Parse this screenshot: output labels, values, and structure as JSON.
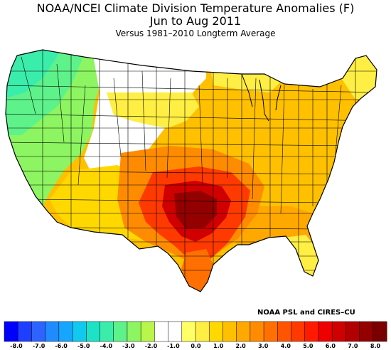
{
  "title": "NOAA/NCEI Climate Division Temperature Anomalies (F)",
  "subtitle": "Jun to Aug 2011",
  "note": "Versus 1981–2010 Longterm Average",
  "credit": "NOAA PSL and CIRES–CU",
  "legend": {
    "ticks": [
      "-8.0",
      "-7.0",
      "-6.0",
      "-5.0",
      "-4.0",
      "-3.0",
      "-2.0",
      "-1.0",
      "0.0",
      "1.0",
      "2.0",
      "3.0",
      "4.0",
      "5.0",
      "6.0",
      "7.0",
      "8.0"
    ],
    "colors": [
      "#0000ff",
      "#1e3fff",
      "#2f63ff",
      "#1e8cff",
      "#16a6ff",
      "#11c8ef",
      "#1de3c6",
      "#3aedaa",
      "#5ef28a",
      "#8cf561",
      "#b9f649",
      "#ffffff",
      "#ffffff",
      "#ffff66",
      "#ffee44",
      "#ffd800",
      "#ffc000",
      "#ffa800",
      "#ff8c00",
      "#ff7000",
      "#ff5500",
      "#ff3a00",
      "#ff1a00",
      "#ee0000",
      "#d00000",
      "#b20000",
      "#940000",
      "#7a0000"
    ]
  },
  "regions": [
    {
      "name": "pacific-northwest",
      "anomaly": -2.0,
      "color": "#5ef28a"
    },
    {
      "name": "california-great-basin",
      "anomaly": -1.5,
      "color": "#8cf561"
    },
    {
      "name": "northern-rockies-plains",
      "anomaly": 0.0,
      "color": "#ffffff"
    },
    {
      "name": "southwest",
      "anomaly": 1.5,
      "color": "#ffd800"
    },
    {
      "name": "midwest-east",
      "anomaly": 2.0,
      "color": "#ffc000"
    },
    {
      "name": "southeast",
      "anomaly": 3.0,
      "color": "#ffa800"
    },
    {
      "name": "southern-plains-ring",
      "anomaly": 4.0,
      "color": "#ff8c00"
    },
    {
      "name": "texas-oklahoma",
      "anomaly": 5.5,
      "color": "#ff3a00"
    },
    {
      "name": "central-texas-oklahoma-core",
      "anomaly": 7.0,
      "color": "#b20000"
    },
    {
      "name": "south-texas",
      "anomaly": 4.5,
      "color": "#ff7000"
    },
    {
      "name": "north-woods-florida",
      "anomaly": 1.0,
      "color": "#ffff66"
    }
  ]
}
